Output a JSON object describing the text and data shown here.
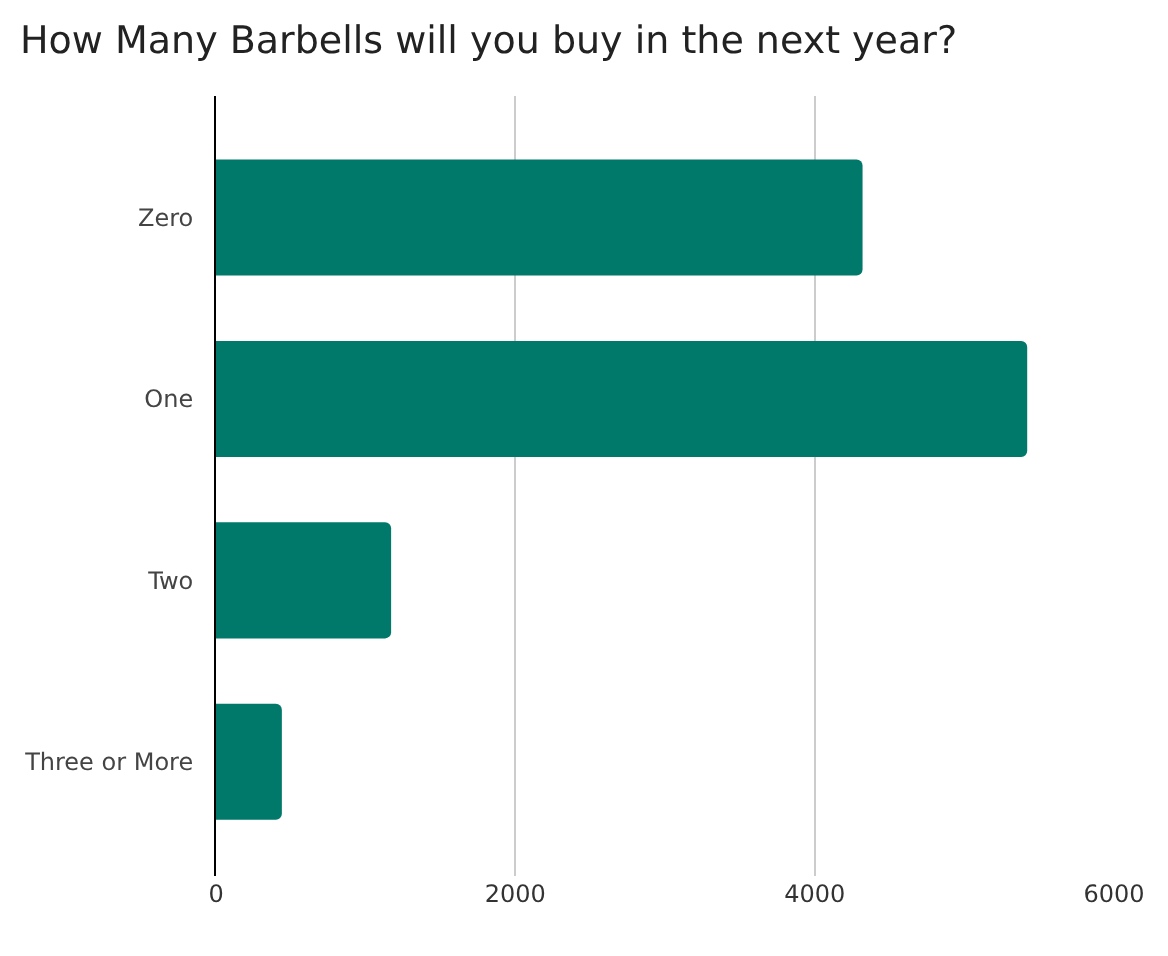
{
  "chart_data": {
    "type": "bar",
    "orientation": "horizontal",
    "title": "How Many Barbells will you buy in the next year?",
    "categories": [
      "Zero",
      "One",
      "Two",
      "Three or More"
    ],
    "values": [
      4320,
      5420,
      1170,
      440
    ],
    "color": "#00796b",
    "xlim": [
      0,
      6000
    ],
    "xticks": [
      0,
      2000,
      4000,
      6000
    ],
    "grid": "x",
    "legend": false
  }
}
